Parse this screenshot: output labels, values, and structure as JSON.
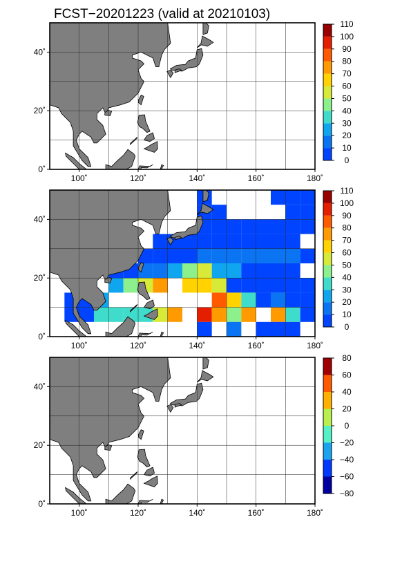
{
  "title": "FCST−20201223 (valid at 20210103)",
  "map": {
    "lon_ticks": [
      "100˚",
      "120˚",
      "140˚",
      "160˚",
      "180˚"
    ],
    "lat_ticks": [
      "0˚",
      "20˚",
      "40˚"
    ],
    "extent": {
      "lon": [
        90,
        180
      ],
      "lat": [
        0,
        50
      ]
    },
    "grid": true,
    "land_color": "#7f7f7f",
    "ocean_color": "#ffffff"
  },
  "colors": {
    "fill": [
      "#0044ff",
      "#0a74f3",
      "#10a6ef",
      "#3fdccc",
      "#8cf08c",
      "#d7ea37",
      "#ffd200",
      "#ff9a00",
      "#ff5a00",
      "#e61e00",
      "#990000"
    ],
    "anomaly": [
      "#0000a0",
      "#0038ff",
      "#1ba3ef",
      "#55f0c5",
      "#b9f04d",
      "#ffb000",
      "#ff5a00",
      "#a00000"
    ]
  },
  "panels": [
    {
      "id": "forecast",
      "colorbar": {
        "labels": [
          "0",
          "10",
          "20",
          "30",
          "40",
          "50",
          "60",
          "70",
          "80",
          "90",
          "100",
          "110"
        ]
      },
      "cells": []
    },
    {
      "id": "observed",
      "colorbar": {
        "labels": [
          "0",
          "10",
          "20",
          "30",
          "40",
          "50",
          "60",
          "70",
          "80",
          "90",
          "100",
          "110"
        ]
      },
      "cells": [
        {
          "lon": 140,
          "lat": 45,
          "v": 5
        },
        {
          "lon": 140,
          "lat": 40,
          "v": 5
        },
        {
          "lon": 145,
          "lat": 40,
          "v": 5
        },
        {
          "lon": 165,
          "lat": 45,
          "v": 5
        },
        {
          "lon": 170,
          "lat": 45,
          "v": 5
        },
        {
          "lon": 175,
          "lat": 45,
          "v": 5
        },
        {
          "lon": 170,
          "lat": 40,
          "v": 5
        },
        {
          "lon": 175,
          "lat": 40,
          "v": 5
        },
        {
          "lon": 140,
          "lat": 35,
          "v": 5
        },
        {
          "lon": 145,
          "lat": 35,
          "v": 5
        },
        {
          "lon": 150,
          "lat": 35,
          "v": 5
        },
        {
          "lon": 155,
          "lat": 35,
          "v": 5
        },
        {
          "lon": 160,
          "lat": 35,
          "v": 5
        },
        {
          "lon": 165,
          "lat": 35,
          "v": 5
        },
        {
          "lon": 170,
          "lat": 35,
          "v": 5
        },
        {
          "lon": 175,
          "lat": 35,
          "v": 5
        },
        {
          "lon": 125,
          "lat": 30,
          "v": 5
        },
        {
          "lon": 130,
          "lat": 30,
          "v": 5
        },
        {
          "lon": 135,
          "lat": 30,
          "v": 5
        },
        {
          "lon": 140,
          "lat": 30,
          "v": 5
        },
        {
          "lon": 145,
          "lat": 30,
          "v": 5
        },
        {
          "lon": 150,
          "lat": 30,
          "v": 5
        },
        {
          "lon": 155,
          "lat": 30,
          "v": 5
        },
        {
          "lon": 160,
          "lat": 30,
          "v": 5
        },
        {
          "lon": 165,
          "lat": 30,
          "v": 5
        },
        {
          "lon": 170,
          "lat": 30,
          "v": 5
        },
        {
          "lon": 120,
          "lat": 25,
          "v": 5
        },
        {
          "lon": 125,
          "lat": 25,
          "v": 5
        },
        {
          "lon": 130,
          "lat": 25,
          "v": 5
        },
        {
          "lon": 135,
          "lat": 25,
          "v": 5
        },
        {
          "lon": 140,
          "lat": 25,
          "v": 15
        },
        {
          "lon": 145,
          "lat": 25,
          "v": 15
        },
        {
          "lon": 150,
          "lat": 25,
          "v": 15
        },
        {
          "lon": 155,
          "lat": 25,
          "v": 15
        },
        {
          "lon": 160,
          "lat": 25,
          "v": 15
        },
        {
          "lon": 165,
          "lat": 25,
          "v": 15
        },
        {
          "lon": 170,
          "lat": 25,
          "v": 15
        },
        {
          "lon": 175,
          "lat": 25,
          "v": 5
        },
        {
          "lon": 110,
          "lat": 20,
          "v": 5
        },
        {
          "lon": 115,
          "lat": 20,
          "v": 5
        },
        {
          "lon": 120,
          "lat": 20,
          "v": 15
        },
        {
          "lon": 125,
          "lat": 20,
          "v": 15
        },
        {
          "lon": 130,
          "lat": 20,
          "v": 25
        },
        {
          "lon": 135,
          "lat": 20,
          "v": 45
        },
        {
          "lon": 140,
          "lat": 20,
          "v": 55
        },
        {
          "lon": 145,
          "lat": 20,
          "v": 25
        },
        {
          "lon": 150,
          "lat": 20,
          "v": 25
        },
        {
          "lon": 155,
          "lat": 20,
          "v": 5
        },
        {
          "lon": 160,
          "lat": 20,
          "v": 5
        },
        {
          "lon": 165,
          "lat": 20,
          "v": 5
        },
        {
          "lon": 170,
          "lat": 20,
          "v": 5
        },
        {
          "lon": 110,
          "lat": 15,
          "v": 25
        },
        {
          "lon": 115,
          "lat": 15,
          "v": 45
        },
        {
          "lon": 120,
          "lat": 15,
          "v": 55
        },
        {
          "lon": 125,
          "lat": 15,
          "v": 75
        },
        {
          "lon": 135,
          "lat": 15,
          "v": 65
        },
        {
          "lon": 140,
          "lat": 15,
          "v": 65
        },
        {
          "lon": 145,
          "lat": 15,
          "v": 55
        },
        {
          "lon": 150,
          "lat": 15,
          "v": 5
        },
        {
          "lon": 155,
          "lat": 15,
          "v": 5
        },
        {
          "lon": 160,
          "lat": 15,
          "v": 5
        },
        {
          "lon": 165,
          "lat": 15,
          "v": 5
        },
        {
          "lon": 170,
          "lat": 15,
          "v": 5
        },
        {
          "lon": 175,
          "lat": 15,
          "v": 5
        },
        {
          "lon": 95,
          "lat": 10,
          "v": 5
        },
        {
          "lon": 100,
          "lat": 10,
          "v": 5
        },
        {
          "lon": 105,
          "lat": 10,
          "v": 25
        },
        {
          "lon": 145,
          "lat": 10,
          "v": 85
        },
        {
          "lon": 150,
          "lat": 10,
          "v": 65
        },
        {
          "lon": 155,
          "lat": 10,
          "v": 35
        },
        {
          "lon": 160,
          "lat": 10,
          "v": 5
        },
        {
          "lon": 165,
          "lat": 10,
          "v": 15
        },
        {
          "lon": 170,
          "lat": 10,
          "v": 5
        },
        {
          "lon": 175,
          "lat": 10,
          "v": 5
        },
        {
          "lon": 95,
          "lat": 5,
          "v": 5
        },
        {
          "lon": 100,
          "lat": 5,
          "v": 5
        },
        {
          "lon": 105,
          "lat": 5,
          "v": 35
        },
        {
          "lon": 110,
          "lat": 5,
          "v": 35
        },
        {
          "lon": 115,
          "lat": 5,
          "v": 35
        },
        {
          "lon": 120,
          "lat": 5,
          "v": 35
        },
        {
          "lon": 125,
          "lat": 5,
          "v": 55
        },
        {
          "lon": 130,
          "lat": 5,
          "v": 75
        },
        {
          "lon": 140,
          "lat": 5,
          "v": 95
        },
        {
          "lon": 145,
          "lat": 5,
          "v": 75
        },
        {
          "lon": 150,
          "lat": 5,
          "v": 45
        },
        {
          "lon": 155,
          "lat": 5,
          "v": 75
        },
        {
          "lon": 165,
          "lat": 5,
          "v": 75
        },
        {
          "lon": 170,
          "lat": 5,
          "v": 35
        },
        {
          "lon": 175,
          "lat": 5,
          "v": 5
        },
        {
          "lon": 140,
          "lat": 0,
          "v": 5
        },
        {
          "lon": 150,
          "lat": 0,
          "v": 15
        },
        {
          "lon": 160,
          "lat": 0,
          "v": 5
        },
        {
          "lon": 165,
          "lat": 0,
          "v": 5
        },
        {
          "lon": 170,
          "lat": 0,
          "v": 5
        }
      ]
    },
    {
      "id": "difference",
      "colorbar": {
        "labels": [
          "−80",
          "−60",
          "−40",
          "−20",
          "0",
          "20",
          "40",
          "60",
          "80"
        ]
      },
      "cells": []
    }
  ]
}
